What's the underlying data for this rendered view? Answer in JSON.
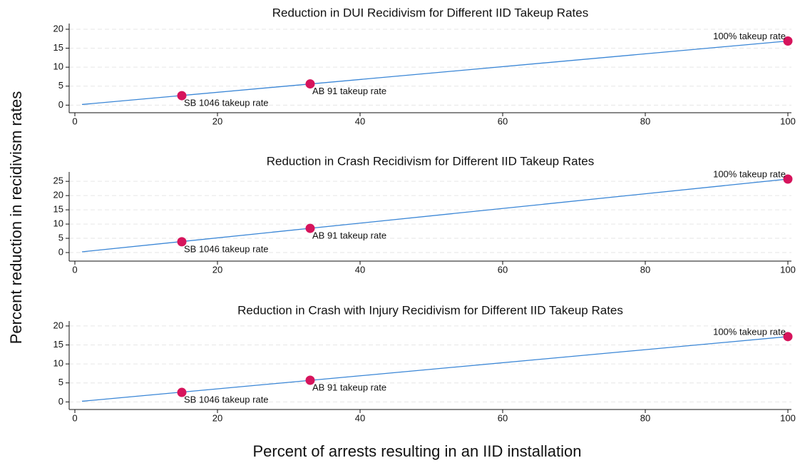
{
  "ylabel": "Percent reduction in recidivism rates",
  "xlabel": "Percent of arrests resulting in an IID installation",
  "chart_data": [
    {
      "type": "line",
      "title": "Reduction in DUI Recidivism for Different IID Takeup Rates",
      "line": {
        "x": [
          1,
          100
        ],
        "values": [
          0.17,
          16.9
        ],
        "color": "#3a86d6"
      },
      "points": {
        "x": [
          15,
          33,
          100
        ],
        "values": [
          2.5,
          5.6,
          16.9
        ],
        "labels": [
          "SB 1046 takeup rate",
          "AB 91 takeup rate",
          "100% takeup rate"
        ],
        "color": "#d6145c"
      },
      "xlim": [
        -0.8,
        100.5
      ],
      "xticks": [
        0,
        20,
        40,
        60,
        80,
        100
      ],
      "ylim": [
        -2,
        21.5
      ],
      "yticks": [
        0,
        5,
        10,
        15,
        20
      ],
      "grid": true
    },
    {
      "type": "line",
      "title": "Reduction in Crash Recidivism for Different IID Takeup Rates",
      "line": {
        "x": [
          1,
          100
        ],
        "values": [
          0.26,
          25.8
        ],
        "color": "#3a86d6"
      },
      "points": {
        "x": [
          15,
          33,
          100
        ],
        "values": [
          3.8,
          8.5,
          25.8
        ],
        "labels": [
          "SB 1046 takeup rate",
          "AB 91 takeup rate",
          "100% takeup rate"
        ],
        "color": "#d6145c"
      },
      "xlim": [
        -0.8,
        100.5
      ],
      "xticks": [
        0,
        20,
        40,
        60,
        80,
        100
      ],
      "ylim": [
        -3,
        28.3
      ],
      "yticks": [
        0,
        5,
        10,
        15,
        20,
        25
      ],
      "grid": true
    },
    {
      "type": "line",
      "title": "Reduction in Crash with Injury Recidivism for Different IID Takeup Rates",
      "line": {
        "x": [
          1,
          100
        ],
        "values": [
          0.17,
          17.2
        ],
        "color": "#3a86d6"
      },
      "points": {
        "x": [
          15,
          33,
          100
        ],
        "values": [
          2.5,
          5.7,
          17.2
        ],
        "labels": [
          "SB 1046 takeup rate",
          "AB 91 takeup rate",
          "100% takeup rate"
        ],
        "color": "#d6145c"
      },
      "xlim": [
        -0.8,
        100.5
      ],
      "xticks": [
        0,
        20,
        40,
        60,
        80,
        100
      ],
      "ylim": [
        -2,
        21.3
      ],
      "yticks": [
        0,
        5,
        10,
        15,
        20
      ],
      "grid": true
    }
  ]
}
